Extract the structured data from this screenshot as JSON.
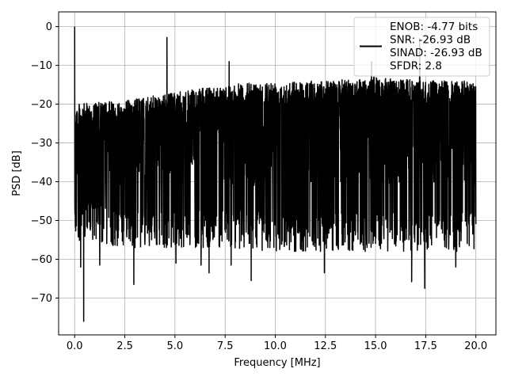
{
  "chart_data": {
    "type": "line",
    "xlabel": "Frequency [MHz]",
    "ylabel": "PSD [dB]",
    "xlim": [
      -0.8,
      21.0
    ],
    "ylim": [
      -79.5,
      3.8
    ],
    "x_ticks": [
      0.0,
      2.5,
      5.0,
      7.5,
      10.0,
      12.5,
      15.0,
      17.5,
      20.0
    ],
    "x_tick_labels": [
      "0.0",
      "2.5",
      "5.0",
      "7.5",
      "10.0",
      "12.5",
      "15.0",
      "17.5",
      "20.0"
    ],
    "y_ticks": [
      0,
      -10,
      -20,
      -30,
      -40,
      -50,
      -60,
      -70
    ],
    "y_tick_labels": [
      "0",
      "−10",
      "−20",
      "−30",
      "−40",
      "−50",
      "−60",
      "−70"
    ],
    "grid": true,
    "legend": {
      "placement": "top-right",
      "entries": [
        "ENOB: -4.77 bits",
        "SNR: -26.93 dB",
        "SINAD: -26.93 dB",
        "SFDR: 2.8"
      ]
    },
    "series": [
      {
        "color": "#000000",
        "x_range": [
          0.0,
          20.0
        ],
        "noise_floor_db": -32,
        "envelope_upper_db": [
          [
            0.0,
            -20
          ],
          [
            2.5,
            -19
          ],
          [
            5.0,
            -17
          ],
          [
            7.5,
            -15
          ],
          [
            10.0,
            -14
          ],
          [
            12.5,
            -14
          ],
          [
            15.0,
            -13
          ],
          [
            17.5,
            -14
          ],
          [
            20.0,
            -14
          ]
        ],
        "envelope_lower_db": [
          [
            0.0,
            -55
          ],
          [
            2.5,
            -57
          ],
          [
            5.0,
            -57
          ],
          [
            7.5,
            -57
          ],
          [
            10.0,
            -58
          ],
          [
            12.5,
            -58
          ],
          [
            15.0,
            -58
          ],
          [
            17.5,
            -58
          ],
          [
            20.0,
            -58
          ]
        ],
        "peaks": [
          {
            "x": 0.0,
            "y": 0.0
          },
          {
            "x": 0.45,
            "y": -76.0
          },
          {
            "x": 0.3,
            "y": -62.0
          },
          {
            "x": 1.25,
            "y": -61.5
          },
          {
            "x": 2.95,
            "y": -66.5
          },
          {
            "x": 4.6,
            "y": -2.8
          },
          {
            "x": 5.05,
            "y": -61.0
          },
          {
            "x": 6.3,
            "y": -61.5
          },
          {
            "x": 6.7,
            "y": -63.5
          },
          {
            "x": 7.8,
            "y": -61.5
          },
          {
            "x": 8.8,
            "y": -65.5
          },
          {
            "x": 12.45,
            "y": -63.5
          },
          {
            "x": 16.8,
            "y": -65.8
          },
          {
            "x": 17.45,
            "y": -67.5
          },
          {
            "x": 19.0,
            "y": -62.0
          },
          {
            "x": 17.2,
            "y": -3.0
          },
          {
            "x": 14.8,
            "y": -9.0
          },
          {
            "x": 7.7,
            "y": -9.0
          }
        ]
      }
    ]
  }
}
